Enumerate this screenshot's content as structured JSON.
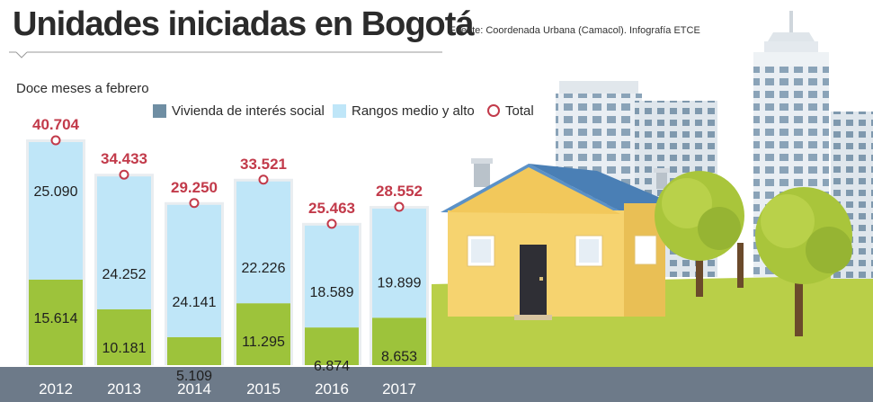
{
  "title": "Unidades iniciadas en Bogotá",
  "source": "Fuente: Coordenada Urbana (Camacol). Infografía ETCE",
  "subtitle": "Doce meses a febrero",
  "legend": {
    "vis": "Vivienda de interés social",
    "medio_alto": "Rangos medio y alto",
    "total": "Total"
  },
  "colors": {
    "vis": "#9dc33b",
    "medio_alto": "#bfe6f8",
    "total": "#c23a4a",
    "axis_band": "#6d7a89",
    "legend_vis": "#6f8ea3"
  },
  "chart_data": {
    "type": "bar",
    "stacked": true,
    "categories": [
      "2012",
      "2013",
      "2014",
      "2015",
      "2016",
      "2017"
    ],
    "series": [
      {
        "name": "Vivienda de interés social",
        "values": [
          15614,
          10181,
          5109,
          11295,
          6874,
          8653
        ],
        "labels": [
          "15.614",
          "10.181",
          "5.109",
          "11.295",
          "6.874",
          "8.653"
        ]
      },
      {
        "name": "Rangos medio y alto",
        "values": [
          25090,
          24252,
          24141,
          22226,
          18589,
          19899
        ],
        "labels": [
          "25.090",
          "24.252",
          "24.141",
          "22.226",
          "18.589",
          "19.899"
        ]
      }
    ],
    "totals": {
      "name": "Total",
      "values": [
        40704,
        34433,
        29250,
        33521,
        25463,
        28552
      ],
      "labels": [
        "40.704",
        "34.433",
        "29.250",
        "33.521",
        "25.463",
        "28.552"
      ]
    }
  }
}
